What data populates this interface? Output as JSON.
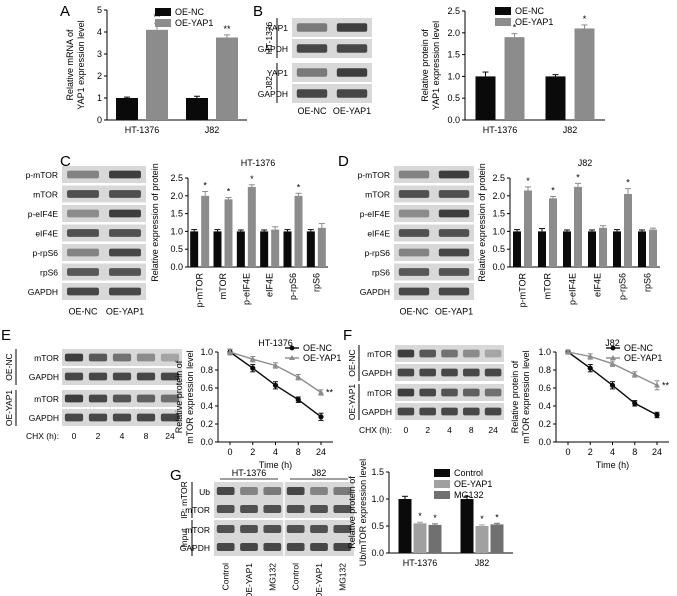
{
  "colors": {
    "black": "#0a0a0a",
    "gray": "#8c8c8c",
    "mid_gray": "#7a7a7a",
    "blot_bg": "#d8d8d8",
    "band": "#2e2e2e"
  },
  "panel_letters": [
    "A",
    "B",
    "C",
    "D",
    "E",
    "F",
    "G"
  ],
  "blots": {
    "B": {
      "groups": [
        {
          "name": "HT-1376",
          "rows": [
            "YAP1",
            "GAPDH"
          ]
        },
        {
          "name": "J82",
          "rows": [
            "YAP1",
            "GAPDH"
          ]
        }
      ],
      "lanes": [
        "OE-NC",
        "OE-YAP1"
      ],
      "band_intensity": [
        [
          0.55,
          0.9
        ],
        [
          0.85,
          0.85
        ],
        [
          0.55,
          0.9
        ],
        [
          0.85,
          0.85
        ]
      ]
    },
    "C": {
      "rows": [
        "p-mTOR",
        "mTOR",
        "p-eIF4E",
        "eIF4E",
        "p-rpS6",
        "rpS6",
        "GAPDH"
      ],
      "lanes": [
        "OE-NC",
        "OE-YAP1"
      ],
      "band_intensity": [
        [
          0.5,
          0.9
        ],
        [
          0.8,
          0.8
        ],
        [
          0.45,
          0.9
        ],
        [
          0.8,
          0.8
        ],
        [
          0.5,
          0.85
        ],
        [
          0.75,
          0.78
        ],
        [
          0.85,
          0.85
        ]
      ]
    },
    "D": {
      "rows": [
        "p-mTOR",
        "mTOR",
        "p-eIF4E",
        "eIF4E",
        "p-rpS6",
        "rpS6",
        "GAPDH"
      ],
      "lanes": [
        "OE-NC",
        "OE-YAP1"
      ],
      "band_intensity": [
        [
          0.5,
          0.9
        ],
        [
          0.8,
          0.8
        ],
        [
          0.45,
          0.9
        ],
        [
          0.8,
          0.8
        ],
        [
          0.5,
          0.85
        ],
        [
          0.75,
          0.78
        ],
        [
          0.85,
          0.85
        ]
      ]
    },
    "E": {
      "groups": [
        {
          "name": "OE-NC",
          "rows": [
            "mTOR",
            "GAPDH"
          ]
        },
        {
          "name": "OE-YAP1",
          "rows": [
            "mTOR",
            "GAPDH"
          ]
        }
      ],
      "cycle_label": "CHX (h):",
      "lanes": [
        "0",
        "2",
        "4",
        "8",
        "24"
      ],
      "band_intensity": [
        [
          0.9,
          0.75,
          0.6,
          0.45,
          0.3
        ],
        [
          0.85,
          0.85,
          0.85,
          0.85,
          0.85
        ],
        [
          0.9,
          0.85,
          0.78,
          0.7,
          0.62
        ],
        [
          0.85,
          0.85,
          0.85,
          0.85,
          0.85
        ]
      ]
    },
    "F": {
      "groups": [
        {
          "name": "OE-NC",
          "rows": [
            "mTOR",
            "GAPDH"
          ]
        },
        {
          "name": "OE-YAP1",
          "rows": [
            "mTOR",
            "GAPDH"
          ]
        }
      ],
      "cycle_label": "CHX (h):",
      "lanes": [
        "0",
        "2",
        "4",
        "8",
        "24"
      ],
      "band_intensity": [
        [
          0.9,
          0.75,
          0.6,
          0.45,
          0.3
        ],
        [
          0.85,
          0.85,
          0.85,
          0.85,
          0.85
        ],
        [
          0.9,
          0.85,
          0.78,
          0.7,
          0.62
        ],
        [
          0.85,
          0.85,
          0.85,
          0.85,
          0.85
        ]
      ]
    },
    "G": {
      "title_groups": [
        "HT-1376",
        "J82"
      ],
      "ip_label": "IP: mTOR",
      "input_label": "Input",
      "rows": [
        "Ub",
        "mTOR",
        "mTOR",
        "GAPDH"
      ],
      "lanes": [
        "Control",
        "OE-YAP1",
        "MG132",
        "Control",
        "OE-YAP1",
        "MG132"
      ],
      "band_intensity": [
        [
          0.85,
          0.5,
          0.55,
          0.85,
          0.5,
          0.55
        ],
        [
          0.8,
          0.8,
          0.8,
          0.8,
          0.8,
          0.8
        ],
        [
          0.8,
          0.8,
          0.8,
          0.8,
          0.8,
          0.8
        ],
        [
          0.85,
          0.85,
          0.85,
          0.85,
          0.85,
          0.85
        ]
      ]
    }
  },
  "chart_data": [
    {
      "id": "A",
      "type": "bar",
      "categories": [
        "HT-1376",
        "J82"
      ],
      "series": [
        {
          "name": "OE-NC",
          "color": "#0a0a0a",
          "values": [
            1.0,
            1.0
          ],
          "errors": [
            0.04,
            0.08
          ],
          "sig": [
            "",
            ""
          ]
        },
        {
          "name": "OE-YAP1",
          "color": "#8c8c8c",
          "values": [
            4.1,
            3.75
          ],
          "errors": [
            0.3,
            0.12
          ],
          "sig": [
            "**",
            "**"
          ]
        }
      ],
      "ylabel": [
        "Relative mRNA of",
        "YAP1 expression level"
      ],
      "ylim": [
        0,
        5
      ],
      "yticks": [
        0,
        1,
        2,
        3,
        4,
        5
      ],
      "legend": "top-left"
    },
    {
      "id": "B",
      "type": "bar",
      "categories": [
        "HT-1376",
        "J82"
      ],
      "series": [
        {
          "name": "OE-NC",
          "color": "#0a0a0a",
          "values": [
            1.0,
            1.0
          ],
          "errors": [
            0.1,
            0.04
          ],
          "sig": [
            "",
            ""
          ]
        },
        {
          "name": "OE-YAP1",
          "color": "#8c8c8c",
          "values": [
            1.9,
            2.1
          ],
          "errors": [
            0.08,
            0.08
          ],
          "sig": [
            "*",
            "*"
          ]
        }
      ],
      "ylabel": [
        "Relative protein of",
        "YAP1 expression level"
      ],
      "ylim": [
        0,
        2.5
      ],
      "yticks": [
        0,
        0.5,
        1.0,
        1.5,
        2.0,
        2.5
      ],
      "legend": "top-left"
    },
    {
      "id": "C",
      "type": "bar",
      "title": "HT-1376",
      "categories": [
        "p-mTOR",
        "mTOR",
        "p-eIF4E",
        "eIF4E",
        "p-rpS6",
        "rpS6"
      ],
      "series": [
        {
          "color": "#0a0a0a",
          "values": [
            1.0,
            1.0,
            1.0,
            1.0,
            1.0,
            1.0
          ],
          "errors": [
            0.05,
            0.05,
            0.04,
            0.04,
            0.05,
            0.05
          ],
          "sig": [
            "",
            "",
            "",
            "",
            "",
            ""
          ]
        },
        {
          "color": "#8c8c8c",
          "values": [
            2.0,
            1.9,
            2.25,
            1.05,
            2.0,
            1.1
          ],
          "errors": [
            0.12,
            0.05,
            0.06,
            0.08,
            0.07,
            0.12
          ],
          "sig": [
            "*",
            "*",
            "*",
            "",
            "*",
            ""
          ]
        }
      ],
      "ylabel": [
        "Relative expression of protein"
      ],
      "ylim": [
        0,
        2.5
      ],
      "yticks": [
        0,
        0.5,
        1.0,
        1.5,
        2.0,
        2.5
      ]
    },
    {
      "id": "D",
      "type": "bar",
      "title": "J82",
      "categories": [
        "p-mTOR",
        "mTOR",
        "p-eIF4E",
        "eIF4E",
        "p-rpS6",
        "rpS6"
      ],
      "series": [
        {
          "color": "#0a0a0a",
          "values": [
            1.0,
            1.0,
            1.0,
            1.0,
            1.0,
            1.0
          ],
          "errors": [
            0.05,
            0.08,
            0.04,
            0.04,
            0.05,
            0.04
          ],
          "sig": [
            "",
            "",
            "",
            "",
            "",
            ""
          ]
        },
        {
          "color": "#8c8c8c",
          "values": [
            2.15,
            1.93,
            2.25,
            1.1,
            2.05,
            1.05
          ],
          "errors": [
            0.1,
            0.05,
            0.1,
            0.06,
            0.15,
            0.04
          ],
          "sig": [
            "*",
            "*",
            "*",
            "",
            "*",
            ""
          ]
        }
      ],
      "ylabel": [
        "Relative expression of protein"
      ],
      "ylim": [
        0,
        2.5
      ],
      "yticks": [
        0,
        0.5,
        1.0,
        1.5,
        2.0,
        2.5
      ]
    },
    {
      "id": "E",
      "type": "line",
      "title": "HT-1376",
      "x": [
        0,
        2,
        4,
        8,
        24
      ],
      "series": [
        {
          "name": "OE-NC",
          "color": "#0a0a0a",
          "marker": "circle",
          "values": [
            1.0,
            0.82,
            0.63,
            0.47,
            0.28
          ],
          "errors": [
            0.03,
            0.04,
            0.04,
            0.03,
            0.04
          ],
          "sig": ""
        },
        {
          "name": "OE-YAP1",
          "color": "#8c8c8c",
          "marker": "triangle",
          "values": [
            1.0,
            0.92,
            0.85,
            0.72,
            0.55
          ],
          "errors": [
            0.03,
            0.03,
            0.03,
            0.03,
            0.03
          ],
          "sig": "**"
        }
      ],
      "xlabel": "Time (h)",
      "ylabel": [
        "Relative protein of",
        "mTOR expression level"
      ],
      "ylim": [
        0,
        1.0
      ],
      "yticks": [
        0,
        0.2,
        0.4,
        0.6,
        0.8,
        1.0
      ],
      "legend": "top-right"
    },
    {
      "id": "F",
      "type": "line",
      "title": "J82",
      "x": [
        0,
        2,
        4,
        8,
        24
      ],
      "series": [
        {
          "name": "OE-NC",
          "color": "#0a0a0a",
          "marker": "circle",
          "values": [
            1.0,
            0.82,
            0.63,
            0.43,
            0.3
          ],
          "errors": [
            0.02,
            0.04,
            0.04,
            0.03,
            0.03
          ],
          "sig": ""
        },
        {
          "name": "OE-YAP1",
          "color": "#8c8c8c",
          "marker": "triangle",
          "values": [
            1.0,
            0.95,
            0.87,
            0.75,
            0.63
          ],
          "errors": [
            0.02,
            0.03,
            0.03,
            0.03,
            0.05
          ],
          "sig": "**"
        }
      ],
      "xlabel": "Time (h)",
      "ylabel": [
        "Relative protein of",
        "mTOR expression level"
      ],
      "ylim": [
        0,
        1.0
      ],
      "yticks": [
        0,
        0.2,
        0.4,
        0.6,
        0.8,
        1.0
      ],
      "legend": "top-right"
    },
    {
      "id": "G",
      "type": "bar",
      "categories": [
        "HT-1376",
        "J82"
      ],
      "series": [
        {
          "name": "Control",
          "color": "#0a0a0a",
          "values": [
            1.0,
            1.0
          ],
          "errors": [
            0.05,
            0.05
          ],
          "sig": [
            "",
            ""
          ]
        },
        {
          "name": "OE-YAP1",
          "color": "#a0a0a0",
          "values": [
            0.55,
            0.5
          ],
          "errors": [
            0.02,
            0.02
          ],
          "sig": [
            "*",
            "*"
          ]
        },
        {
          "name": "MG132",
          "color": "#707070",
          "values": [
            0.52,
            0.53
          ],
          "errors": [
            0.02,
            0.02
          ],
          "sig": [
            "*",
            "*"
          ]
        }
      ],
      "ylabel": [
        "Relative protein of",
        "Ub/mTOR expression level"
      ],
      "ylim": [
        0,
        1.5
      ],
      "yticks": [
        0,
        0.5,
        1.0,
        1.5
      ],
      "legend": "top-right"
    }
  ]
}
